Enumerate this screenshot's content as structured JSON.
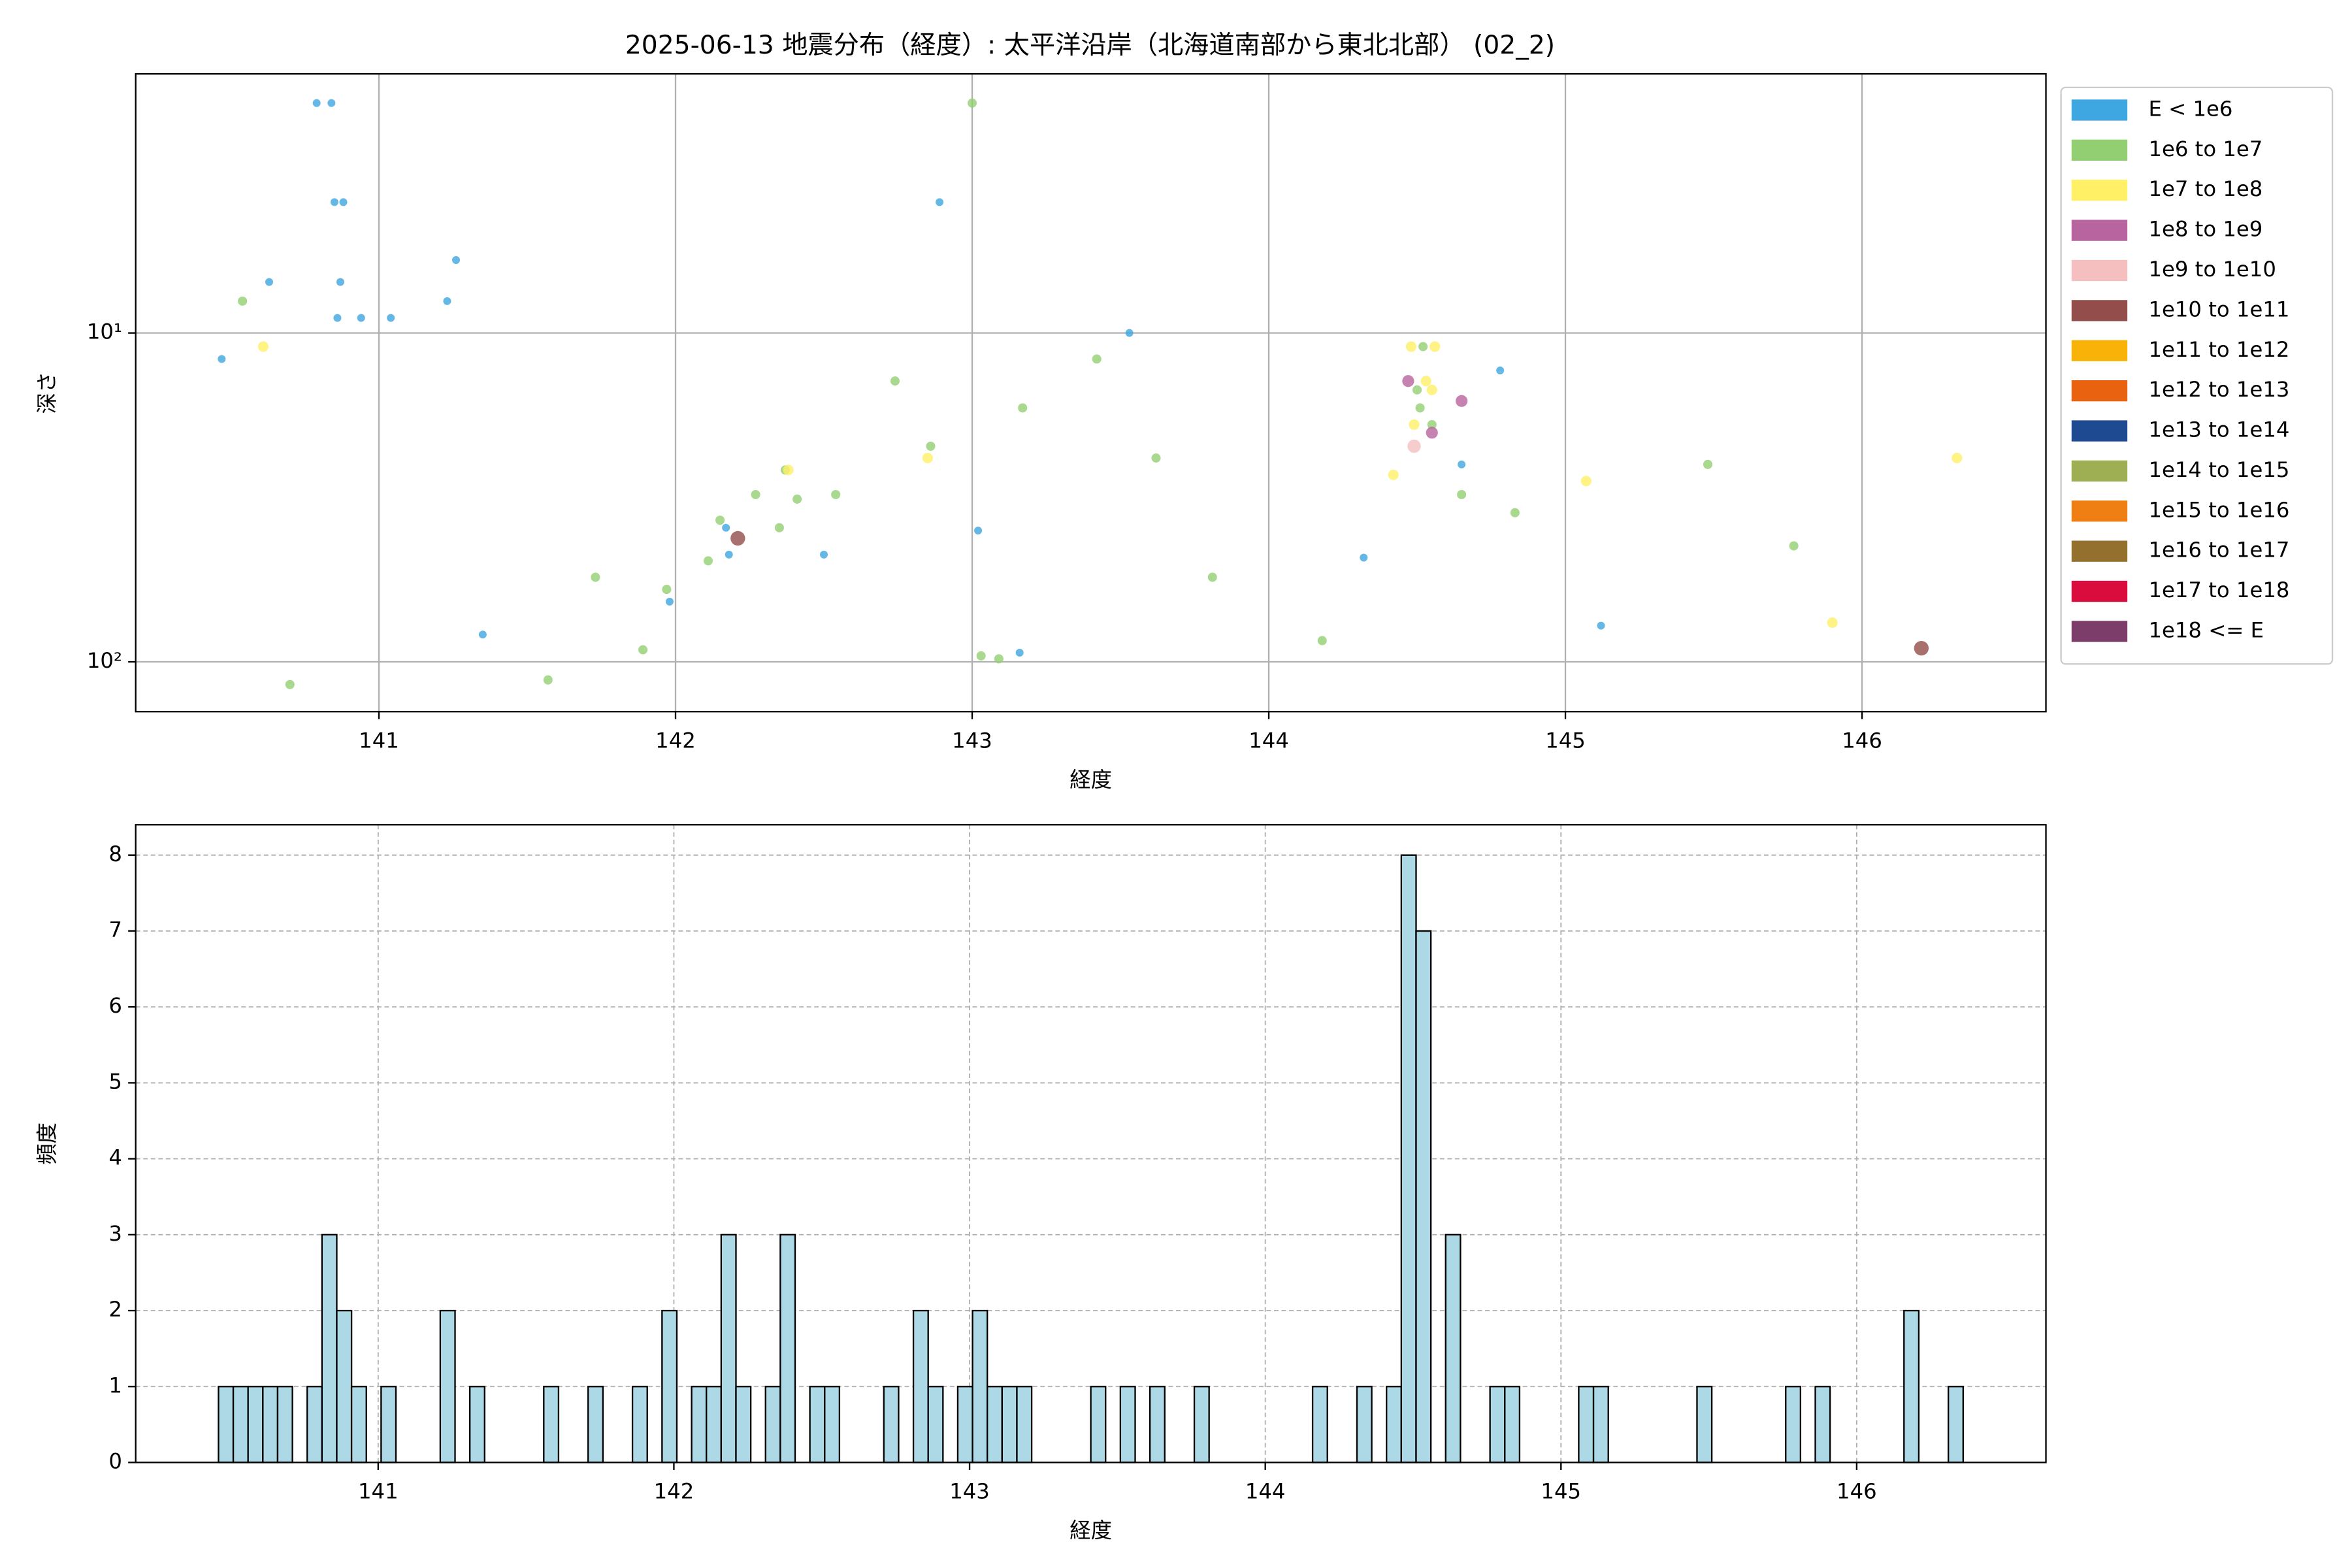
{
  "chart_data": [
    {
      "type": "scatter",
      "title": "2025-06-13 地震分布（経度）: 太平洋沿岸（北海道南部から東北北部） (02_2)",
      "xlabel": "経度",
      "ylabel": "深さ",
      "xlim": [
        140.18,
        146.62
      ],
      "xticks": [
        141,
        142,
        143,
        144,
        145,
        146
      ],
      "ylim": [
        1.63,
        141.7
      ],
      "yscale": "log",
      "yinverted": true,
      "yticks": [
        {
          "value": 10,
          "label": "10¹"
        },
        {
          "value": 100,
          "label": "10²"
        }
      ],
      "grid": true,
      "legend": "outside upper right",
      "series": [
        {
          "name": "E < 1e6",
          "color": "#3ea6e0",
          "x": [
            140.47,
            140.63,
            140.79,
            140.84,
            140.85,
            140.88,
            140.87,
            140.86,
            140.94,
            141.04,
            141.23,
            141.26,
            141.35,
            141.98,
            142.17,
            142.18,
            142.5,
            142.89,
            143.02,
            143.16,
            143.53,
            144.32,
            144.65,
            144.78,
            145.12
          ],
          "y": [
            12.0,
            7.0,
            2.0,
            2.0,
            4.0,
            4.0,
            7.0,
            9.0,
            9.0,
            9.0,
            8.0,
            6.0,
            82.6,
            65.6,
            39.1,
            47.2,
            47.2,
            4.0,
            39.9,
            93.8,
            10.0,
            48.2,
            25.1,
            13.0,
            77.6
          ]
        },
        {
          "name": "1e6 to 1e7",
          "color": "#92cf72",
          "x": [
            140.54,
            140.7,
            141.57,
            141.73,
            141.89,
            141.97,
            142.11,
            142.15,
            142.27,
            142.35,
            142.41,
            142.54,
            142.74,
            142.86,
            143.0,
            143.03,
            143.09,
            143.17,
            143.42,
            143.62,
            143.81,
            144.18,
            144.5,
            144.52,
            144.51,
            144.55,
            144.65,
            144.83,
            145.48,
            145.77,
            142.37
          ],
          "y": [
            8.0,
            117.2,
            113.5,
            55.3,
            91.9,
            60.2,
            49.3,
            37.1,
            31.0,
            39.1,
            32.0,
            31.0,
            14.0,
            22.1,
            2.0,
            95.9,
            97.9,
            16.9,
            12.0,
            24.0,
            55.3,
            86.2,
            14.9,
            11.0,
            16.9,
            19.0,
            31.0,
            35.2,
            25.1,
            44.4,
            26.1
          ]
        },
        {
          "name": "1e7 to 1e8",
          "color": "#fff066",
          "x": [
            140.61,
            142.38,
            142.85,
            144.42,
            144.48,
            144.49,
            144.53,
            144.55,
            144.56,
            145.07,
            145.9,
            146.32
          ],
          "y": [
            11.0,
            26.1,
            24.0,
            27.0,
            11.0,
            19.0,
            14.0,
            14.9,
            11.0,
            28.2,
            76.0,
            24.0
          ]
        },
        {
          "name": "1e8 to 1e9",
          "color": "#b8649f",
          "x": [
            144.47,
            144.55,
            144.65
          ],
          "y": [
            14.0,
            20.1,
            16.1
          ]
        },
        {
          "name": "1e9 to 1e10",
          "color": "#f5bfbf",
          "x": [
            144.49
          ],
          "y": [
            22.1
          ]
        },
        {
          "name": "1e10 to 1e11",
          "color": "#934d4a",
          "x": [
            142.21,
            146.2
          ],
          "y": [
            42.1,
            90.9
          ]
        },
        {
          "name": "1e11 to 1e12",
          "color": "#f9b208",
          "x": [],
          "y": []
        },
        {
          "name": "1e12 to 1e13",
          "color": "#e8620f",
          "x": [],
          "y": []
        },
        {
          "name": "1e13 to 1e14",
          "color": "#1d4a91",
          "x": [],
          "y": []
        },
        {
          "name": "1e14 to 1e15",
          "color": "#9daf52",
          "x": [],
          "y": []
        },
        {
          "name": "1e15 to 1e16",
          "color": "#f07f13",
          "x": [],
          "y": []
        },
        {
          "name": "1e16 to 1e17",
          "color": "#94702e",
          "x": [],
          "y": []
        },
        {
          "name": "1e17 to 1e18",
          "color": "#da0c3d",
          "x": [],
          "y": []
        },
        {
          "name": "1e18 <= E",
          "color": "#7d3d6b",
          "x": [],
          "y": []
        }
      ]
    },
    {
      "type": "histogram",
      "xlabel": "経度",
      "ylabel": "頻度",
      "xlim": [
        140.18,
        146.64
      ],
      "xticks": [
        141,
        142,
        143,
        144,
        145,
        146
      ],
      "ylim": [
        0,
        8.4
      ],
      "yticks": [
        0,
        1,
        2,
        3,
        4,
        5,
        6,
        7,
        8
      ],
      "grid": true,
      "grid_linestyle": "dashed",
      "color": "#add8e6",
      "edgecolor": "#000000",
      "bins": [
        140.46,
        140.51,
        140.56,
        140.61,
        140.66,
        140.71,
        140.76,
        140.81,
        140.86,
        140.91,
        140.96,
        141.01,
        141.06,
        141.11,
        141.16,
        141.21,
        141.26,
        141.31,
        141.36,
        141.41,
        141.46,
        141.51,
        141.56,
        141.61,
        141.66,
        141.71,
        141.76,
        141.81,
        141.86,
        141.91,
        141.96,
        142.01,
        142.06,
        142.11,
        142.16,
        142.21,
        142.26,
        142.31,
        142.36,
        142.41,
        142.46,
        142.51,
        142.56,
        142.61,
        142.66,
        142.71,
        142.76,
        142.81,
        142.86,
        142.91,
        142.96,
        143.01,
        143.06,
        143.11,
        143.16,
        143.21,
        143.26,
        143.31,
        143.36,
        143.41,
        143.46,
        143.51,
        143.56,
        143.61,
        143.66,
        143.71,
        143.76,
        143.81,
        143.86,
        143.91,
        143.96,
        144.01,
        144.06,
        144.11,
        144.16,
        144.21,
        144.26,
        144.31,
        144.36,
        144.41,
        144.46,
        144.51,
        144.56,
        144.61,
        144.66,
        144.71,
        144.76,
        144.81,
        144.86,
        144.91,
        144.96,
        145.01,
        145.06,
        145.11,
        145.16,
        145.21,
        145.26,
        145.31,
        145.36,
        145.41,
        145.46,
        145.51,
        145.56,
        145.61,
        145.66,
        145.71,
        145.76,
        145.81,
        145.86,
        145.91,
        145.96,
        146.01,
        146.06,
        146.11,
        146.16,
        146.21,
        146.26,
        146.31,
        146.36
      ],
      "values": [
        1,
        1,
        1,
        1,
        1,
        0,
        1,
        3,
        2,
        1,
        0,
        1,
        0,
        0,
        0,
        2,
        0,
        1,
        0,
        0,
        0,
        0,
        1,
        0,
        0,
        1,
        0,
        0,
        1,
        0,
        2,
        0,
        1,
        1,
        3,
        1,
        0,
        1,
        3,
        0,
        1,
        1,
        0,
        0,
        0,
        1,
        0,
        2,
        1,
        0,
        1,
        2,
        1,
        1,
        1,
        0,
        0,
        0,
        0,
        1,
        0,
        1,
        0,
        1,
        0,
        0,
        1,
        0,
        0,
        0,
        0,
        0,
        0,
        0,
        1,
        0,
        0,
        1,
        0,
        1,
        8,
        7,
        0,
        3,
        0,
        0,
        1,
        1,
        0,
        0,
        0,
        0,
        1,
        1,
        0,
        0,
        0,
        0,
        0,
        0,
        1,
        0,
        0,
        0,
        0,
        0,
        1,
        0,
        1,
        0,
        0,
        0,
        0,
        0,
        2,
        0,
        0,
        1
      ]
    }
  ]
}
